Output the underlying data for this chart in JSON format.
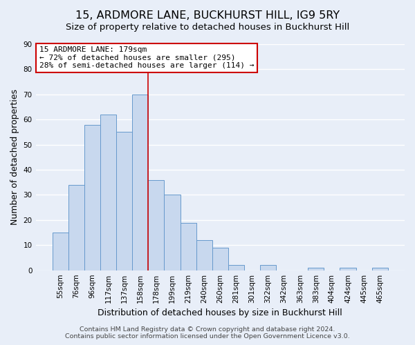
{
  "title": "15, ARDMORE LANE, BUCKHURST HILL, IG9 5RY",
  "subtitle": "Size of property relative to detached houses in Buckhurst Hill",
  "xlabel": "Distribution of detached houses by size in Buckhurst Hill",
  "ylabel": "Number of detached properties",
  "bar_labels": [
    "55sqm",
    "76sqm",
    "96sqm",
    "117sqm",
    "137sqm",
    "158sqm",
    "178sqm",
    "199sqm",
    "219sqm",
    "240sqm",
    "260sqm",
    "281sqm",
    "301sqm",
    "322sqm",
    "342sqm",
    "363sqm",
    "383sqm",
    "404sqm",
    "424sqm",
    "445sqm",
    "465sqm"
  ],
  "bar_values": [
    15,
    34,
    58,
    62,
    55,
    70,
    36,
    30,
    19,
    12,
    9,
    2,
    0,
    2,
    0,
    0,
    1,
    0,
    1,
    0,
    1
  ],
  "bar_color": "#c8d8ee",
  "bar_edge_color": "#6699cc",
  "marker_index": 6,
  "marker_line_color": "#cc0000",
  "annotation_title": "15 ARDMORE LANE: 179sqm",
  "annotation_line1": "← 72% of detached houses are smaller (295)",
  "annotation_line2": "28% of semi-detached houses are larger (114) →",
  "annotation_box_color": "#ffffff",
  "annotation_box_edge": "#cc0000",
  "ylim": [
    0,
    90
  ],
  "yticks": [
    0,
    10,
    20,
    30,
    40,
    50,
    60,
    70,
    80,
    90
  ],
  "footer1": "Contains HM Land Registry data © Crown copyright and database right 2024.",
  "footer2": "Contains public sector information licensed under the Open Government Licence v3.0.",
  "background_color": "#e8eef8",
  "plot_bg_color": "#e8eef8",
  "grid_color": "#ffffff",
  "title_fontsize": 11.5,
  "subtitle_fontsize": 9.5,
  "axis_label_fontsize": 9,
  "tick_fontsize": 7.5,
  "annotation_fontsize": 8,
  "footer_fontsize": 6.8
}
